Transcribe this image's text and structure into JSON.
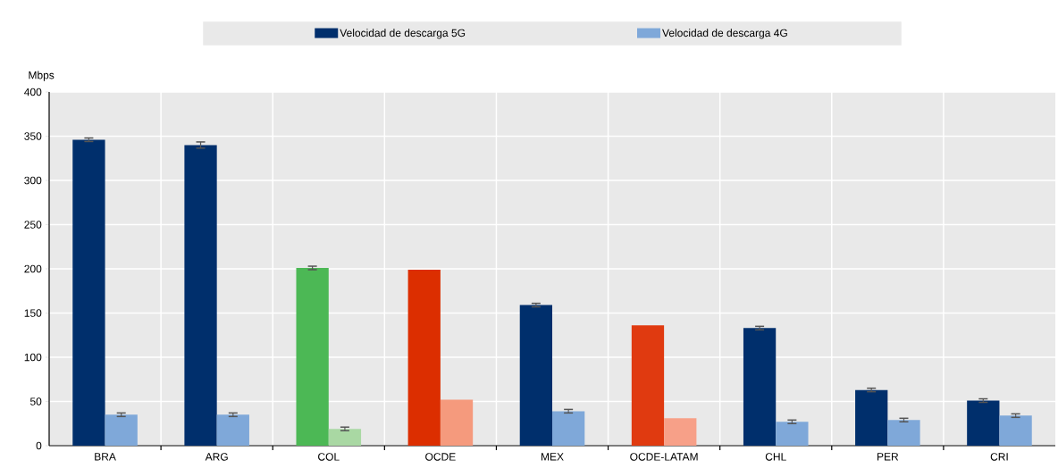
{
  "chart_data": {
    "type": "bar",
    "ylabel": "Mbps",
    "categories": [
      "BRA",
      "ARG",
      "COL",
      "OCDE",
      "MEX",
      "OCDE-LATAM",
      "CHL",
      "PER",
      "CRI"
    ],
    "series": [
      {
        "name": "Velocidad de descarga 5G",
        "color": "#002f6c",
        "colors": [
          "#002f6c",
          "#002f6c",
          "#4cb855",
          "#dc2e00",
          "#002f6c",
          "#e03a10",
          "#002f6c",
          "#002f6c",
          "#002f6c"
        ],
        "values": [
          346,
          340,
          201,
          199,
          159,
          136,
          133,
          63,
          51
        ],
        "errors": [
          2,
          3.5,
          2,
          null,
          2,
          null,
          2,
          2,
          2
        ]
      },
      {
        "name": "Velocidad de descarga 4G",
        "color": "#7fa8d9",
        "colors": [
          "#7fa8d9",
          "#7fa8d9",
          "#a9d8a3",
          "#f59a7d",
          "#7fa8d9",
          "#f7a088",
          "#7fa8d9",
          "#7fa8d9",
          "#7fa8d9"
        ],
        "values": [
          35,
          35,
          19,
          52,
          39,
          31,
          27,
          29,
          34
        ],
        "errors": [
          2,
          2,
          2,
          null,
          2,
          null,
          2,
          2,
          2
        ]
      }
    ],
    "ylim": [
      0,
      400
    ],
    "yticks": [
      0,
      50,
      100,
      150,
      200,
      250,
      300,
      350,
      400
    ],
    "grid": true,
    "legend": "top"
  }
}
